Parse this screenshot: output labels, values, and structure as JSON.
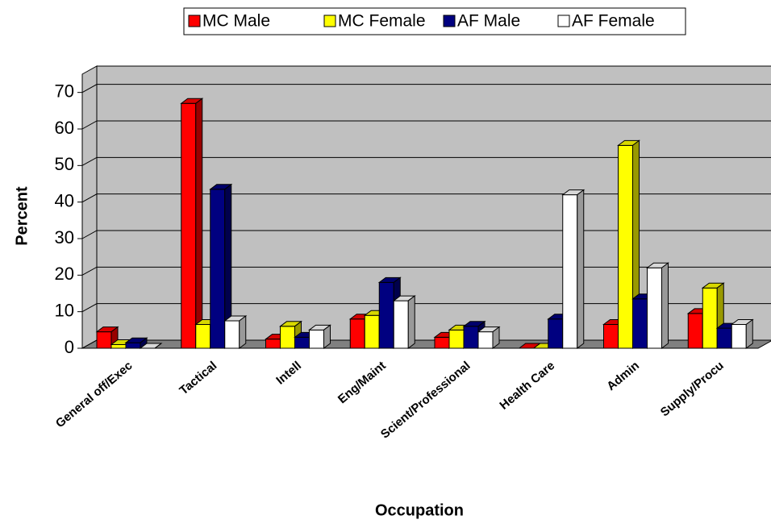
{
  "chart_data": {
    "type": "bar3d",
    "categories": [
      "General off/Exec",
      "Tactical",
      "Intell",
      "Eng/Maint",
      "Scient/Professional",
      "Health Care",
      "Admin",
      "Supply/Procu"
    ],
    "series": [
      {
        "name": "MC Male",
        "color": "#ff0000",
        "values": [
          4.5,
          67,
          2.5,
          8,
          3,
          0,
          6.5,
          9.5
        ]
      },
      {
        "name": "MC Female",
        "color": "#ffff00",
        "values": [
          1,
          6.5,
          6,
          9,
          5,
          0,
          55.5,
          16.5
        ]
      },
      {
        "name": "AF Male",
        "color": "#000080",
        "values": [
          1.5,
          43.5,
          3,
          18,
          6,
          8,
          13.5,
          5.5
        ]
      },
      {
        "name": "AF Female",
        "color": "#ffffff",
        "values": [
          0,
          7.5,
          5,
          13,
          4.5,
          42,
          22,
          6.5
        ]
      }
    ],
    "ylabel": "Percent",
    "xlabel": "Occupation",
    "ylim": [
      0,
      75
    ],
    "yticks": [
      0,
      10,
      20,
      30,
      40,
      50,
      60,
      70
    ],
    "grid": true,
    "legend": "top"
  }
}
